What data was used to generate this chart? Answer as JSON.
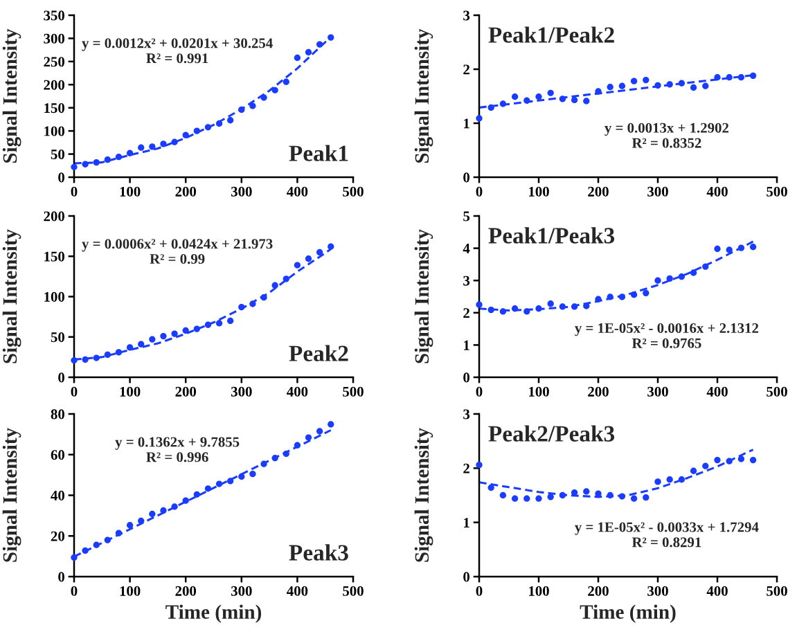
{
  "chart_data": [
    {
      "type": "scatter",
      "title": "Peak1",
      "ylabel": "Signal Intensity",
      "xlim": [
        0,
        500
      ],
      "ylim": [
        0,
        350
      ],
      "xticks": [
        0,
        100,
        200,
        300,
        400,
        500
      ],
      "yticks": [
        0,
        50,
        100,
        150,
        200,
        250,
        300,
        350
      ],
      "grid": false,
      "legend": false,
      "annotations": [
        "y = 0.0012x² + 0.0201x + 30.254\nR² = 0.991"
      ],
      "x": [
        0,
        20,
        40,
        60,
        80,
        100,
        120,
        140,
        160,
        180,
        200,
        220,
        240,
        260,
        280,
        300,
        320,
        340,
        360,
        380,
        400,
        420,
        440,
        460
      ],
      "series": [
        {
          "marker": "circle",
          "color": "#1a3cff",
          "values": [
            22,
            28,
            32,
            38,
            44,
            52,
            64,
            66,
            72,
            76,
            91,
            100,
            108,
            116,
            123,
            146,
            154,
            172,
            188,
            206,
            258,
            270,
            287,
            302
          ]
        },
        {
          "type": "line",
          "line_style": "dashed",
          "color": "#1a3cff",
          "x": [
            0,
            50,
            100,
            150,
            200,
            250,
            300,
            350,
            400,
            450,
            460
          ],
          "values": [
            30,
            32,
            48,
            62,
            85,
            113,
            147,
            187,
            235,
            292,
            300
          ]
        }
      ]
    },
    {
      "type": "scatter",
      "title": "Peak1/Peak2",
      "ylabel": "Signal Intensity",
      "xlim": [
        0,
        500
      ],
      "ylim": [
        0,
        3
      ],
      "xticks": [
        0,
        100,
        200,
        300,
        400,
        500
      ],
      "yticks": [
        0,
        1,
        2,
        3
      ],
      "grid": false,
      "legend": false,
      "annotations": [
        "y = 0.0013x + 1.2902\nR² = 0.8352"
      ],
      "x": [
        0,
        20,
        40,
        60,
        80,
        100,
        120,
        140,
        160,
        180,
        200,
        220,
        240,
        260,
        280,
        300,
        320,
        340,
        360,
        380,
        400,
        420,
        440,
        460
      ],
      "series": [
        {
          "marker": "circle",
          "color": "#1a3cff",
          "values": [
            1.09,
            1.29,
            1.36,
            1.49,
            1.42,
            1.49,
            1.56,
            1.45,
            1.43,
            1.41,
            1.59,
            1.67,
            1.69,
            1.78,
            1.8,
            1.7,
            1.72,
            1.74,
            1.66,
            1.69,
            1.85,
            1.85,
            1.85,
            1.88
          ]
        },
        {
          "type": "line",
          "line_style": "dashed",
          "color": "#1a3cff",
          "x": [
            0,
            460
          ],
          "values": [
            1.29,
            1.89
          ]
        }
      ]
    },
    {
      "type": "scatter",
      "title": "Peak2",
      "ylabel": "Signal Intensity",
      "xlim": [
        0,
        500
      ],
      "ylim": [
        0,
        200
      ],
      "xticks": [
        0,
        100,
        200,
        300,
        400,
        500
      ],
      "yticks": [
        0,
        50,
        100,
        150,
        200
      ],
      "grid": false,
      "legend": false,
      "annotations": [
        "y = 0.0006x² + 0.0424x + 21.973\nR² = 0.99"
      ],
      "x": [
        0,
        20,
        40,
        60,
        80,
        100,
        120,
        140,
        160,
        180,
        200,
        220,
        240,
        260,
        280,
        300,
        320,
        340,
        360,
        380,
        400,
        420,
        440,
        460
      ],
      "series": [
        {
          "marker": "circle",
          "color": "#1a3cff",
          "values": [
            21,
            22,
            24,
            28,
            31,
            37,
            41,
            47,
            51,
            54,
            58,
            60,
            65,
            67,
            70,
            87,
            91,
            99,
            114,
            122,
            139,
            147,
            155,
            162
          ]
        },
        {
          "type": "line",
          "line_style": "dashed",
          "color": "#1a3cff",
          "x": [
            0,
            50,
            100,
            150,
            200,
            250,
            300,
            350,
            400,
            450,
            460
          ],
          "values": [
            22,
            25,
            34,
            42,
            54,
            68,
            85,
            105,
            131,
            154,
            159
          ]
        }
      ]
    },
    {
      "type": "scatter",
      "title": "Peak1/Peak3",
      "ylabel": "Signal Intensity",
      "xlim": [
        0,
        500
      ],
      "ylim": [
        0,
        5
      ],
      "xticks": [
        0,
        100,
        200,
        300,
        400,
        500
      ],
      "yticks": [
        0,
        1,
        2,
        3,
        4,
        5
      ],
      "grid": false,
      "legend": false,
      "annotations": [
        "y = 1E-05x² - 0.0016x + 2.1312\nR² = 0.9765"
      ],
      "x": [
        0,
        20,
        40,
        60,
        80,
        100,
        120,
        140,
        160,
        180,
        200,
        220,
        240,
        260,
        280,
        300,
        320,
        340,
        360,
        380,
        400,
        420,
        440,
        460
      ],
      "series": [
        {
          "marker": "circle",
          "color": "#1a3cff",
          "values": [
            2.25,
            2.09,
            2.04,
            2.13,
            2.04,
            2.13,
            2.28,
            2.19,
            2.19,
            2.21,
            2.42,
            2.49,
            2.49,
            2.56,
            2.61,
            3.0,
            3.06,
            3.12,
            3.24,
            3.43,
            3.98,
            3.95,
            4.01,
            4.04
          ]
        },
        {
          "type": "line",
          "line_style": "dashed",
          "color": "#1a3cff",
          "x": [
            0,
            50,
            100,
            150,
            200,
            250,
            300,
            350,
            400,
            450,
            460
          ],
          "values": [
            2.13,
            2.07,
            2.11,
            2.18,
            2.36,
            2.57,
            2.86,
            3.21,
            3.64,
            4.11,
            4.21
          ]
        }
      ]
    },
    {
      "type": "scatter",
      "title": "Peak3",
      "xlabel": "Time (min)",
      "ylabel": "Signal Intensity",
      "xlim": [
        0,
        500
      ],
      "ylim": [
        0,
        80
      ],
      "xticks": [
        0,
        100,
        200,
        300,
        400,
        500
      ],
      "yticks": [
        0,
        20,
        40,
        60,
        80
      ],
      "grid": false,
      "legend": false,
      "annotations": [
        "y = 0.1362x + 9.7855\nR² = 0.996"
      ],
      "x": [
        0,
        20,
        40,
        60,
        80,
        100,
        120,
        140,
        160,
        180,
        200,
        220,
        240,
        260,
        280,
        300,
        320,
        340,
        360,
        380,
        400,
        420,
        440,
        460
      ],
      "series": [
        {
          "marker": "circle",
          "color": "#1a3cff",
          "values": [
            9.4,
            12.8,
            15.6,
            18.0,
            21.4,
            25.3,
            27.4,
            30.8,
            32.5,
            34.4,
            37.4,
            40.4,
            43.3,
            45.6,
            47.0,
            49.2,
            50.5,
            55.4,
            58.3,
            60.4,
            64.6,
            68.4,
            71.5,
            74.9
          ]
        },
        {
          "type": "line",
          "line_style": "dashed",
          "color": "#1a3cff",
          "x": [
            0,
            460
          ],
          "values": [
            9.8,
            72
          ]
        }
      ]
    },
    {
      "type": "scatter",
      "title": "Peak2/Peak3",
      "xlabel": "Time (min)",
      "ylabel": "Signal Intensity",
      "xlim": [
        0,
        500
      ],
      "ylim": [
        0,
        3
      ],
      "xticks": [
        0,
        100,
        200,
        300,
        400,
        500
      ],
      "yticks": [
        0,
        1,
        2,
        3
      ],
      "grid": false,
      "legend": false,
      "annotations": [
        "y = 1E-05x² - 0.0033x + 1.7294\nR² = 0.8291"
      ],
      "x": [
        0,
        20,
        40,
        60,
        80,
        100,
        120,
        140,
        160,
        180,
        200,
        220,
        240,
        260,
        280,
        300,
        320,
        340,
        360,
        380,
        400,
        420,
        440,
        460
      ],
      "series": [
        {
          "marker": "circle",
          "color": "#1a3cff",
          "values": [
            2.06,
            1.64,
            1.5,
            1.44,
            1.44,
            1.44,
            1.47,
            1.5,
            1.55,
            1.57,
            1.53,
            1.5,
            1.48,
            1.44,
            1.46,
            1.75,
            1.79,
            1.79,
            1.95,
            2.04,
            2.15,
            2.13,
            2.17,
            2.15
          ]
        },
        {
          "type": "line",
          "line_style": "dashed",
          "color": "#1a3cff",
          "x": [
            0,
            50,
            100,
            150,
            200,
            250,
            300,
            350,
            400,
            450,
            460
          ],
          "values": [
            1.74,
            1.65,
            1.56,
            1.5,
            1.47,
            1.5,
            1.63,
            1.82,
            2.03,
            2.29,
            2.34
          ]
        }
      ]
    }
  ]
}
